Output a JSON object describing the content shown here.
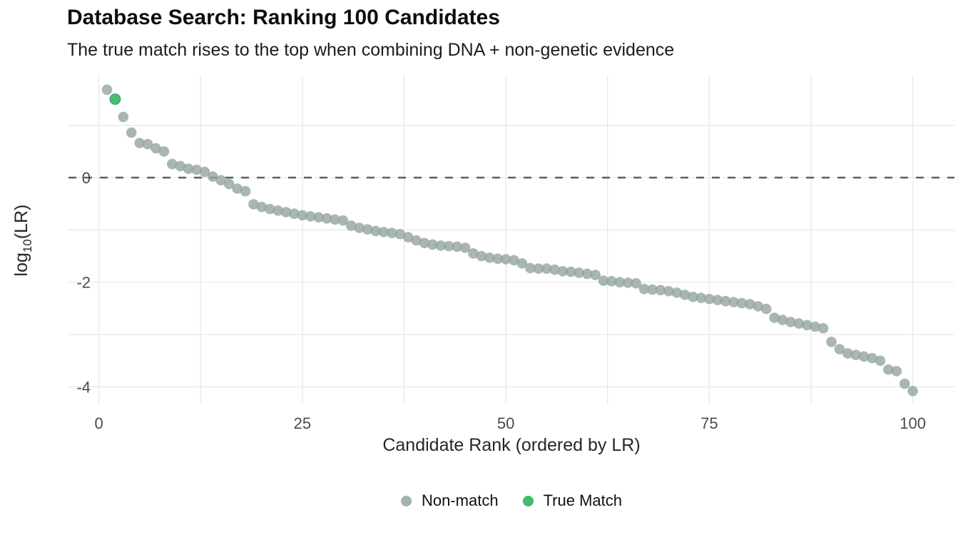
{
  "header": {
    "title": "Database Search: Ranking 100 Candidates",
    "subtitle": "The true match rises to the top when combining DNA + non-genetic evidence"
  },
  "chart_data": {
    "type": "scatter",
    "title": "Database Search: Ranking 100 Candidates",
    "subtitle": "The true match rises to the top when combining DNA + non-genetic evidence",
    "xlabel": "Candidate Rank (ordered by LR)",
    "ylabel": "log10(LR)",
    "ylabel_parts": {
      "pre": "log",
      "sub": "10",
      "post": "(LR)"
    },
    "x_ticks": [
      0,
      25,
      50,
      75,
      100
    ],
    "y_ticks": [
      0,
      -2,
      -4
    ],
    "xlim": [
      -3.5,
      105.5
    ],
    "ylim": [
      -4.33,
      1.97
    ],
    "x_gridline_step": 12.5,
    "y_gridline_step": 1,
    "grid": true,
    "reference_line": {
      "y": 0,
      "style": "dashed",
      "color": "#5e5e5e"
    },
    "ranks_start_at": 1,
    "true_match_rank": 2,
    "values": [
      1.68,
      1.5,
      1.16,
      0.86,
      0.66,
      0.64,
      0.56,
      0.5,
      0.26,
      0.22,
      0.17,
      0.15,
      0.11,
      0.02,
      -0.05,
      -0.12,
      -0.21,
      -0.26,
      -0.51,
      -0.56,
      -0.6,
      -0.63,
      -0.66,
      -0.69,
      -0.72,
      -0.74,
      -0.76,
      -0.78,
      -0.8,
      -0.82,
      -0.92,
      -0.96,
      -0.99,
      -1.02,
      -1.04,
      -1.06,
      -1.08,
      -1.14,
      -1.2,
      -1.25,
      -1.28,
      -1.3,
      -1.31,
      -1.32,
      -1.34,
      -1.45,
      -1.5,
      -1.53,
      -1.55,
      -1.56,
      -1.58,
      -1.64,
      -1.73,
      -1.74,
      -1.74,
      -1.76,
      -1.79,
      -1.8,
      -1.82,
      -1.84,
      -1.86,
      -1.97,
      -1.98,
      -2.0,
      -2.01,
      -2.02,
      -2.13,
      -2.14,
      -2.15,
      -2.17,
      -2.2,
      -2.24,
      -2.28,
      -2.3,
      -2.32,
      -2.34,
      -2.36,
      -2.38,
      -2.4,
      -2.42,
      -2.46,
      -2.51,
      -2.68,
      -2.72,
      -2.76,
      -2.79,
      -2.82,
      -2.85,
      -2.88,
      -3.14,
      -3.28,
      -3.36,
      -3.39,
      -3.42,
      -3.45,
      -3.5,
      -3.67,
      -3.7,
      -3.94,
      -4.08
    ],
    "legend": [
      {
        "label": "Non-match",
        "color": "#93a49f"
      },
      {
        "label": "True Match",
        "color": "#3fba6e"
      }
    ],
    "colors": {
      "non_match": "#93a49f",
      "true_match": "#3fba6e",
      "true_match_edge": "#2aa35a",
      "gridline": "#e9e9e9",
      "tick_label": "#4a4a4a",
      "axis_title": "#262626"
    },
    "legend_position": "bottom-center"
  }
}
